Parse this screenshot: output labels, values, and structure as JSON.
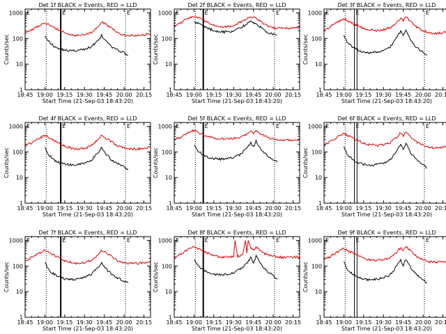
{
  "figure": {
    "x_ticks": [
      "18:45",
      "19:00",
      "19:15",
      "19:30",
      "19:45",
      "20:00",
      "20:15"
    ],
    "x_tick_values": [
      0,
      15,
      30,
      45,
      60,
      75,
      90
    ],
    "xlim": [
      0,
      95
    ],
    "y_ticks": [
      "1",
      "10",
      "100",
      "1000"
    ],
    "ylim_log10": [
      0,
      3.15
    ],
    "ylabel": "Counts/sec",
    "xlabel": "Start Time (21-Sep-03 18:43:20)",
    "colors": {
      "events": "#000000",
      "lld": "#dd0000",
      "axes": "#000000"
    }
  },
  "chart_data": [
    {
      "type": "line",
      "title": "Det 1f BLACK = Events, RED = LLD",
      "flags": [
        "E",
        "E",
        "E"
      ],
      "markers": {
        "dotted": [
          16,
          76
        ],
        "solid": [
          27
        ]
      },
      "series": [
        {
          "name": "Events",
          "x": [
            15,
            18,
            22,
            26,
            30,
            35,
            40,
            45,
            50,
            55,
            58,
            62,
            66,
            70,
            74,
            78
          ],
          "values": [
            135,
            75,
            50,
            40,
            35,
            33,
            34,
            38,
            48,
            80,
            130,
            70,
            45,
            35,
            30,
            22
          ]
        },
        {
          "name": "LLD",
          "x": [
            0,
            5,
            10,
            15,
            20,
            25,
            30,
            35,
            40,
            45,
            50,
            55,
            58,
            62,
            66,
            70,
            75,
            80,
            85,
            90,
            95
          ],
          "values": [
            170,
            220,
            290,
            410,
            300,
            220,
            170,
            140,
            130,
            140,
            170,
            280,
            430,
            330,
            240,
            170,
            140,
            130,
            130,
            140,
            150
          ]
        }
      ]
    },
    {
      "type": "line",
      "title": "Det 2f BLACK = Events, RED = LLD",
      "flags": [
        "E",
        "E",
        "E"
      ],
      "markers": {
        "dotted": [
          16,
          76
        ],
        "solid": [
          22
        ]
      },
      "series": [
        {
          "name": "Events",
          "x": [
            15,
            20,
            25,
            30,
            35,
            40,
            45,
            50,
            55,
            58,
            62,
            66,
            70,
            74,
            78
          ],
          "values": [
            430,
            360,
            260,
            200,
            180,
            180,
            200,
            260,
            380,
            450,
            380,
            260,
            180,
            150,
            140
          ]
        },
        {
          "name": "LLD",
          "x": [
            0,
            5,
            10,
            15,
            20,
            25,
            30,
            35,
            40,
            45,
            50,
            55,
            58,
            62,
            66,
            70,
            75,
            80,
            85,
            90,
            95
          ],
          "values": [
            300,
            420,
            620,
            760,
            580,
            420,
            320,
            290,
            290,
            330,
            430,
            560,
            700,
            600,
            430,
            320,
            260,
            250,
            250,
            260,
            270
          ]
        }
      ]
    },
    {
      "type": "line",
      "title": "Det 3f BLACK = Events, RED = LLD",
      "flags": [
        "E",
        "E",
        "E"
      ],
      "markers": {
        "dotted": [
          16,
          76
        ],
        "solid": [
          23,
          25
        ]
      },
      "series": [
        {
          "name": "Events",
          "x": [
            15,
            18,
            22,
            26,
            30,
            35,
            40,
            45,
            50,
            55,
            58,
            60,
            62,
            66,
            70,
            74,
            78
          ],
          "values": [
            130,
            65,
            45,
            35,
            28,
            28,
            30,
            33,
            45,
            110,
            190,
            120,
            200,
            80,
            45,
            32,
            22
          ]
        },
        {
          "name": "LLD",
          "x": [
            0,
            5,
            10,
            15,
            20,
            25,
            30,
            35,
            40,
            45,
            50,
            55,
            58,
            60,
            62,
            66,
            70,
            75,
            80,
            85,
            90,
            95
          ],
          "values": [
            200,
            300,
            420,
            600,
            430,
            320,
            250,
            220,
            200,
            220,
            260,
            420,
            650,
            500,
            700,
            430,
            280,
            200,
            170,
            160,
            170,
            180
          ]
        }
      ]
    },
    {
      "type": "line",
      "title": "Det 4f BLACK = Events, RED = LLD",
      "flags": [
        "E",
        "E",
        "E"
      ],
      "markers": {
        "dotted": [
          16,
          76
        ],
        "solid": [
          27
        ]
      },
      "series": [
        {
          "name": "Events",
          "x": [
            15,
            18,
            22,
            26,
            30,
            35,
            40,
            45,
            50,
            55,
            58,
            62,
            66,
            70,
            74,
            78
          ],
          "values": [
            145,
            75,
            48,
            38,
            33,
            31,
            33,
            36,
            45,
            90,
            140,
            75,
            45,
            35,
            28,
            20
          ]
        },
        {
          "name": "LLD",
          "x": [
            0,
            5,
            10,
            15,
            20,
            25,
            30,
            35,
            40,
            45,
            50,
            55,
            58,
            62,
            66,
            70,
            75,
            80,
            85,
            90,
            95
          ],
          "values": [
            170,
            230,
            330,
            450,
            320,
            230,
            170,
            140,
            130,
            140,
            170,
            290,
            440,
            330,
            240,
            170,
            140,
            130,
            130,
            140,
            150
          ]
        }
      ]
    },
    {
      "type": "line",
      "title": "Det 5f BLACK = Events, RED = LLD",
      "flags": [
        "E",
        "E",
        "E"
      ],
      "markers": {
        "dotted": [
          16,
          76
        ],
        "solid": [
          22
        ]
      },
      "series": [
        {
          "name": "Events",
          "x": [
            15,
            18,
            22,
            26,
            30,
            35,
            40,
            45,
            50,
            55,
            58,
            60,
            62,
            66,
            70,
            74,
            78
          ],
          "values": [
            200,
            110,
            75,
            60,
            55,
            52,
            55,
            60,
            80,
            140,
            220,
            160,
            260,
            120,
            75,
            55,
            40
          ]
        },
        {
          "name": "LLD",
          "x": [
            0,
            5,
            10,
            15,
            20,
            25,
            30,
            35,
            40,
            45,
            50,
            55,
            58,
            60,
            62,
            66,
            70,
            75,
            80,
            85,
            90,
            95
          ],
          "values": [
            300,
            380,
            520,
            700,
            520,
            400,
            340,
            320,
            320,
            340,
            380,
            500,
            650,
            520,
            700,
            480,
            380,
            320,
            300,
            290,
            290,
            300
          ]
        }
      ]
    },
    {
      "type": "line",
      "title": "Det 6f BLACK = Events, RED = LLD",
      "flags": [
        "E",
        "E",
        "E"
      ],
      "markers": {
        "dotted": [
          16,
          76
        ],
        "solid": [
          23,
          25
        ]
      },
      "series": [
        {
          "name": "Events",
          "x": [
            15,
            18,
            22,
            26,
            30,
            35,
            40,
            45,
            50,
            55,
            58,
            60,
            62,
            66,
            70,
            74,
            78
          ],
          "values": [
            150,
            75,
            50,
            38,
            32,
            30,
            32,
            36,
            48,
            110,
            190,
            120,
            210,
            85,
            50,
            35,
            24
          ]
        },
        {
          "name": "LLD",
          "x": [
            0,
            5,
            10,
            15,
            20,
            25,
            30,
            35,
            40,
            45,
            50,
            55,
            58,
            60,
            62,
            66,
            70,
            75,
            80,
            85,
            90,
            95
          ],
          "values": [
            180,
            260,
            380,
            520,
            380,
            280,
            220,
            190,
            180,
            190,
            230,
            370,
            560,
            440,
            620,
            380,
            250,
            180,
            150,
            145,
            150,
            160
          ]
        }
      ]
    },
    {
      "type": "line",
      "title": "Det 7f BLACK = Events, RED = LLD",
      "flags": [
        "E",
        "E",
        "E"
      ],
      "markers": {
        "dotted": [
          16,
          76
        ],
        "solid": [
          27
        ]
      },
      "series": [
        {
          "name": "Events",
          "x": [
            15,
            18,
            22,
            26,
            30,
            35,
            40,
            45,
            50,
            55,
            58,
            62,
            66,
            70,
            74,
            78
          ],
          "values": [
            140,
            70,
            48,
            38,
            32,
            30,
            32,
            36,
            46,
            85,
            135,
            72,
            45,
            34,
            28,
            22
          ]
        },
        {
          "name": "LLD",
          "x": [
            0,
            5,
            10,
            15,
            20,
            25,
            30,
            35,
            40,
            45,
            50,
            55,
            58,
            62,
            66,
            70,
            75,
            80,
            85,
            90,
            95
          ],
          "values": [
            160,
            220,
            300,
            420,
            300,
            220,
            165,
            135,
            125,
            135,
            165,
            270,
            420,
            320,
            230,
            165,
            135,
            125,
            125,
            135,
            145
          ]
        }
      ]
    },
    {
      "type": "line",
      "title": "Det 8f BLACK = Events, RED = LLD",
      "flags": [
        "E",
        "E",
        "E"
      ],
      "markers": {
        "dotted": [
          16,
          76
        ],
        "solid": [
          22
        ]
      },
      "series": [
        {
          "name": "Events",
          "x": [
            15,
            18,
            22,
            26,
            30,
            35,
            40,
            45,
            50,
            55,
            58,
            60,
            62,
            66,
            70,
            74,
            78
          ],
          "values": [
            180,
            100,
            70,
            55,
            48,
            45,
            48,
            55,
            75,
            130,
            210,
            140,
            240,
            110,
            65,
            45,
            30
          ]
        },
        {
          "name": "LLD",
          "x": [
            0,
            5,
            10,
            15,
            20,
            25,
            30,
            35,
            40,
            45,
            46,
            48,
            50,
            52,
            54,
            55,
            56,
            58,
            60,
            62,
            66,
            70,
            75,
            80,
            85,
            90,
            95
          ],
          "values": [
            220,
            300,
            420,
            580,
            420,
            320,
            260,
            230,
            220,
            230,
            1000,
            240,
            250,
            300,
            1000,
            320,
            1000,
            520,
            420,
            580,
            360,
            280,
            240,
            220,
            215,
            220,
            230
          ]
        }
      ]
    },
    {
      "type": "line",
      "title": "Det 9f BLACK = Events, RED = LLD",
      "flags": [
        "E",
        "E",
        "E"
      ],
      "markers": {
        "dotted": [
          16,
          76
        ],
        "solid": [
          23,
          25
        ]
      },
      "series": [
        {
          "name": "Events",
          "x": [
            15,
            18,
            22,
            26,
            30,
            35,
            40,
            45,
            50,
            55,
            58,
            60,
            62,
            66,
            70,
            74,
            78
          ],
          "values": [
            140,
            72,
            48,
            36,
            30,
            29,
            31,
            34,
            45,
            100,
            170,
            110,
            190,
            80,
            48,
            33,
            22
          ]
        },
        {
          "name": "LLD",
          "x": [
            0,
            5,
            10,
            15,
            20,
            25,
            30,
            35,
            40,
            45,
            50,
            55,
            58,
            60,
            62,
            66,
            70,
            75,
            80,
            85,
            90,
            95
          ],
          "values": [
            170,
            240,
            350,
            480,
            350,
            260,
            200,
            175,
            165,
            175,
            210,
            340,
            520,
            410,
            580,
            360,
            240,
            170,
            145,
            140,
            145,
            155
          ]
        }
      ]
    }
  ]
}
